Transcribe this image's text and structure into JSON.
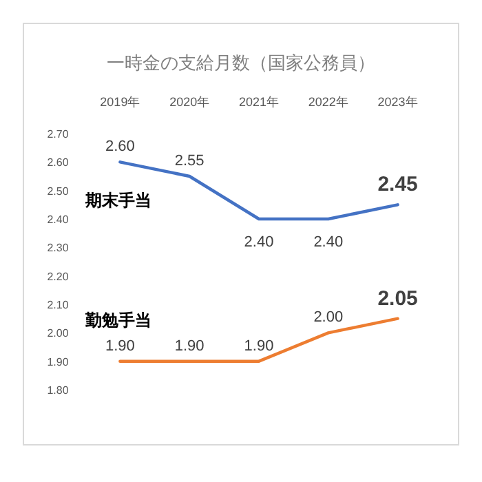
{
  "chart_data": {
    "type": "line",
    "title": "一時金の支給月数（国家公務員）",
    "categories": [
      "2019年",
      "2020年",
      "2021年",
      "2022年",
      "2023年"
    ],
    "series": [
      {
        "name": "期末手当",
        "color": "#4472c4",
        "values": [
          2.6,
          2.55,
          2.4,
          2.4,
          2.45
        ],
        "value_labels": [
          "2.60",
          "2.55",
          "2.40",
          "2.40",
          "2.45"
        ]
      },
      {
        "name": "勤勉手当",
        "color": "#ed7d31",
        "values": [
          1.9,
          1.9,
          1.9,
          2.0,
          2.05
        ],
        "value_labels": [
          "1.90",
          "1.90",
          "1.90",
          "2.00",
          "2.05"
        ]
      }
    ],
    "ylim": [
      1.8,
      2.7
    ],
    "yticks": [
      {
        "value": 1.8,
        "label": "1.80"
      },
      {
        "value": 1.9,
        "label": "1.90"
      },
      {
        "value": 2.0,
        "label": "2.00"
      },
      {
        "value": 2.1,
        "label": "2.10"
      },
      {
        "value": 2.2,
        "label": "2.20"
      },
      {
        "value": 2.3,
        "label": "2.30"
      },
      {
        "value": 2.4,
        "label": "2.40"
      },
      {
        "value": 2.5,
        "label": "2.50"
      },
      {
        "value": 2.6,
        "label": "2.60"
      },
      {
        "value": 2.7,
        "label": "2.70"
      }
    ]
  }
}
